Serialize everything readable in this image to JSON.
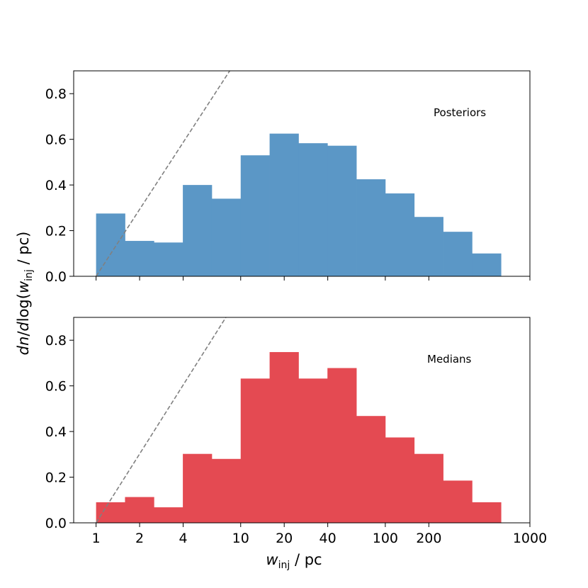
{
  "chart_data": [
    {
      "type": "bar",
      "annotation": "Posteriors",
      "color": "#5b97c6",
      "xscale": "log",
      "xlim": [
        0.7,
        1000
      ],
      "ylim": [
        0,
        0.9
      ],
      "yticks": [
        "0.0",
        "0.2",
        "0.4",
        "0.6",
        "0.8"
      ],
      "bin_edges": [
        1,
        1.585,
        2.512,
        3.981,
        6.31,
        10,
        15.85,
        25.12,
        39.81,
        63.1,
        100,
        158.5,
        251.2,
        398.1,
        631
      ],
      "values": [
        0.275,
        0.155,
        0.148,
        0.4,
        0.34,
        0.53,
        0.625,
        0.583,
        0.572,
        0.425,
        0.363,
        0.26,
        0.195,
        0.1
      ],
      "reference_line": {
        "style": "dashed",
        "color": "#808080",
        "x": [
          1,
          8.4
        ],
        "y": [
          0,
          0.9
        ]
      },
      "show_xtick_labels": false
    },
    {
      "type": "bar",
      "annotation": "Medians",
      "color": "#e44a52",
      "xscale": "log",
      "xlim": [
        0.7,
        1000
      ],
      "ylim": [
        0,
        0.9
      ],
      "yticks": [
        "0.0",
        "0.2",
        "0.4",
        "0.6",
        "0.8"
      ],
      "bin_edges": [
        1,
        1.585,
        2.512,
        3.981,
        6.31,
        10,
        15.85,
        25.12,
        39.81,
        63.1,
        100,
        158.5,
        251.2,
        398.1,
        631
      ],
      "values": [
        0.09,
        0.113,
        0.068,
        0.302,
        0.28,
        0.632,
        0.748,
        0.632,
        0.678,
        0.468,
        0.374,
        0.302,
        0.185,
        0.09
      ],
      "reference_line": {
        "style": "dashed",
        "color": "#808080",
        "x": [
          1,
          7.9
        ],
        "y": [
          0,
          0.9
        ]
      },
      "xticks": [
        1,
        2,
        4,
        10,
        20,
        40,
        100,
        200,
        1000
      ],
      "xtick_labels": [
        "1",
        "2",
        "4",
        "10",
        "20",
        "40",
        "100",
        "200",
        "1000"
      ],
      "show_xtick_labels": true
    }
  ],
  "axes": {
    "ylabel": "dn/dlog(w_inj / pc)",
    "ylabel_parts": {
      "italic_dn": "dn",
      "slash": "/",
      "italic_d": "d",
      "log_open": "log(",
      "italic_w": "w",
      "sub": "inj",
      "rest": " / pc)"
    },
    "xlabel": "w_inj / pc",
    "xlabel_parts": {
      "italic_w": "w",
      "sub": "inj",
      "rest": " / pc"
    }
  }
}
